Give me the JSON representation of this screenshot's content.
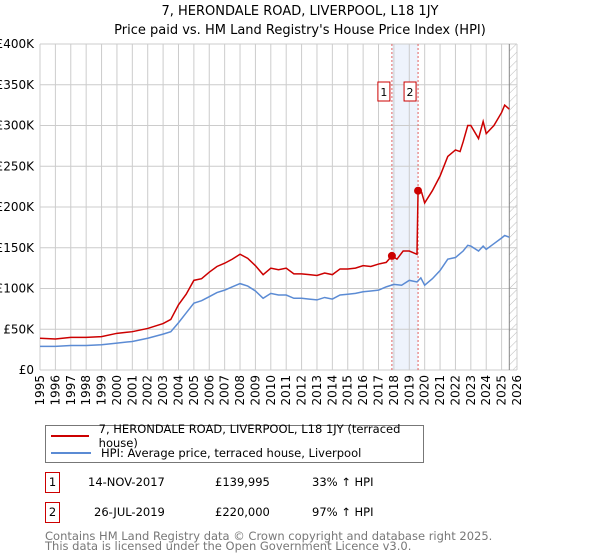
{
  "chart_data": {
    "type": "line",
    "title": "7, HERONDALE ROAD, LIVERPOOL, L18 1JY",
    "subtitle": "Price paid vs. HM Land Registry's House Price Index (HPI)",
    "xlim": [
      1995,
      2026
    ],
    "ylim": [
      0,
      400000
    ],
    "x_ticks": [
      "1995",
      "1996",
      "1997",
      "1998",
      "1999",
      "2000",
      "2001",
      "2002",
      "2003",
      "2004",
      "2005",
      "2006",
      "2007",
      "2008",
      "2009",
      "2010",
      "2011",
      "2012",
      "2013",
      "2014",
      "2015",
      "2016",
      "2017",
      "2018",
      "2019",
      "2020",
      "2021",
      "2022",
      "2023",
      "2024",
      "2025",
      "2026"
    ],
    "y_ticks": [
      {
        "v": 0,
        "label": "£0"
      },
      {
        "v": 50000,
        "label": "£50K"
      },
      {
        "v": 100000,
        "label": "£100K"
      },
      {
        "v": 150000,
        "label": "£150K"
      },
      {
        "v": 200000,
        "label": "£200K"
      },
      {
        "v": 250000,
        "label": "£250K"
      },
      {
        "v": 300000,
        "label": "£300K"
      },
      {
        "v": 350000,
        "label": "£350K"
      },
      {
        "v": 400000,
        "label": "£400K"
      }
    ],
    "grid": true,
    "shaded_range": [
      2017.87,
      2019.57
    ],
    "forecast_from": 2025.5,
    "series": [
      {
        "name": "7, HERONDALE ROAD, LIVERPOOL, L18 1JY (terraced house)",
        "color": "#cc0000",
        "x": [
          1995,
          1996,
          1997,
          1998,
          1999,
          2000,
          2001,
          2002,
          2003,
          2003.5,
          2004,
          2004.5,
          2005,
          2005.5,
          2006,
          2006.5,
          2007,
          2007.5,
          2008,
          2008.5,
          2009,
          2009.5,
          2010,
          2010.5,
          2011,
          2011.5,
          2012,
          2012.5,
          2013,
          2013.5,
          2014,
          2014.5,
          2015,
          2015.5,
          2016,
          2016.5,
          2017,
          2017.5,
          2017.87,
          2018.2,
          2018.6,
          2019,
          2019.5,
          2019.57,
          2019.8,
          2020,
          2020.5,
          2021,
          2021.5,
          2022,
          2022.3,
          2022.5,
          2022.8,
          2023,
          2023.5,
          2023.8,
          2024,
          2024.5,
          2025,
          2025.2,
          2025.5
        ],
        "y": [
          39000,
          38000,
          40000,
          40000,
          41000,
          45000,
          47000,
          51000,
          57000,
          62000,
          80000,
          93000,
          110000,
          112000,
          120000,
          127000,
          131000,
          136000,
          142000,
          137000,
          128000,
          117000,
          125000,
          123000,
          125000,
          118000,
          118000,
          117000,
          116000,
          119000,
          117000,
          124000,
          124000,
          125000,
          128000,
          127000,
          130000,
          132000,
          139995,
          136000,
          146000,
          146000,
          142000,
          220000,
          218000,
          205000,
          220000,
          238000,
          262000,
          270000,
          268000,
          280000,
          300000,
          300000,
          284000,
          305000,
          290000,
          300000,
          316000,
          325000,
          320000
        ]
      },
      {
        "name": "HPI: Average price, terraced house, Liverpool",
        "color": "#5b8bd4",
        "x": [
          1995,
          1996,
          1997,
          1998,
          1999,
          2000,
          2001,
          2002,
          2003,
          2003.5,
          2004,
          2004.5,
          2005,
          2005.5,
          2006,
          2006.5,
          2007,
          2007.5,
          2008,
          2008.5,
          2009,
          2009.5,
          2010,
          2010.5,
          2011,
          2011.5,
          2012,
          2012.5,
          2013,
          2013.5,
          2014,
          2014.5,
          2015,
          2015.5,
          2016,
          2016.5,
          2017,
          2017.5,
          2018,
          2018.5,
          2019,
          2019.5,
          2019.75,
          2020,
          2020.5,
          2021,
          2021.5,
          2022,
          2022.5,
          2022.8,
          2023,
          2023.5,
          2023.8,
          2024,
          2024.5,
          2025,
          2025.2,
          2025.5
        ],
        "y": [
          29000,
          29000,
          30000,
          30000,
          31000,
          33000,
          35000,
          39000,
          44000,
          47000,
          58000,
          70000,
          82000,
          85000,
          90000,
          95000,
          98000,
          102000,
          106000,
          103000,
          97000,
          88000,
          94000,
          92000,
          92000,
          88000,
          88000,
          87000,
          86000,
          89000,
          87000,
          92000,
          93000,
          94000,
          96000,
          97000,
          98000,
          102000,
          105000,
          104000,
          110000,
          108000,
          113000,
          104000,
          112000,
          122000,
          136000,
          138000,
          146000,
          153000,
          152000,
          146000,
          152000,
          148000,
          155000,
          162000,
          165000,
          163000
        ]
      }
    ],
    "sales": [
      {
        "n": "1",
        "date": "14-NOV-2017",
        "price": "£139,995",
        "hpi": "33% ↑ HPI",
        "x": 2017.87,
        "y": 139995
      },
      {
        "n": "2",
        "date": "26-JUL-2019",
        "price": "£220,000",
        "hpi": "97% ↑ HPI",
        "x": 2019.57,
        "y": 220000
      }
    ]
  },
  "footer": {
    "line1": "Contains HM Land Registry data © Crown copyright and database right 2025.",
    "line2": "This data is licensed under the Open Government Licence v3.0."
  }
}
